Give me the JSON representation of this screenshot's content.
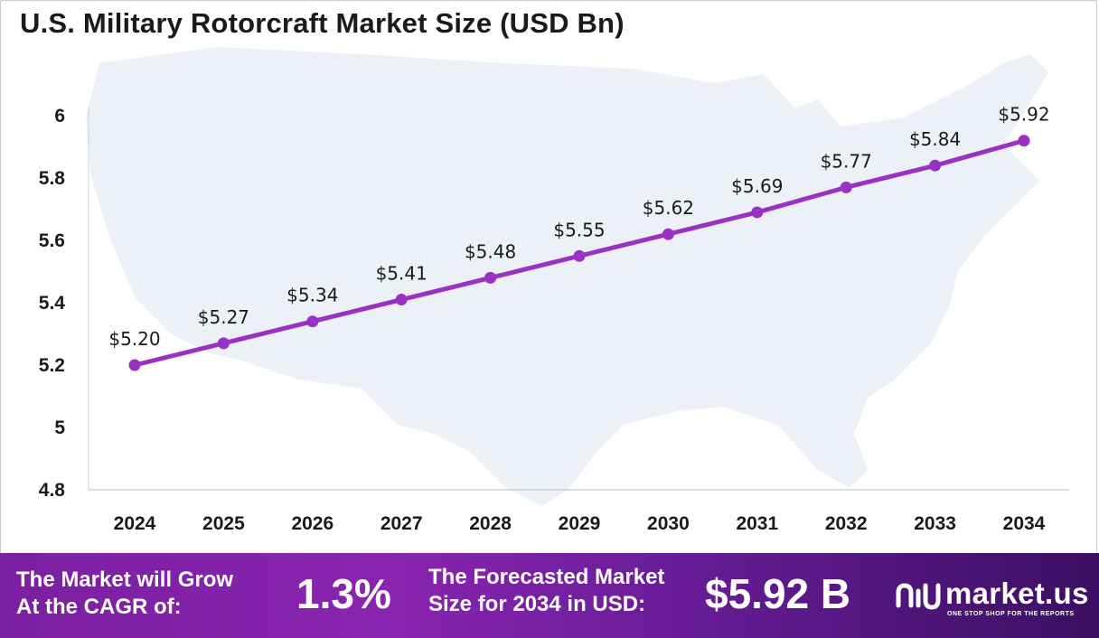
{
  "chart_data": {
    "type": "line",
    "title": "U.S. Military Rotorcraft Market Size (USD Bn)",
    "categories": [
      "2024",
      "2025",
      "2026",
      "2027",
      "2028",
      "2029",
      "2030",
      "2031",
      "2032",
      "2033",
      "2034"
    ],
    "values": [
      5.2,
      5.27,
      5.34,
      5.41,
      5.48,
      5.55,
      5.62,
      5.69,
      5.77,
      5.84,
      5.92
    ],
    "data_labels": [
      "$5.20",
      "$5.27",
      "$5.34",
      "$5.41",
      "$5.48",
      "$5.55",
      "$5.62",
      "$5.69",
      "$5.77",
      "$5.84",
      "$5.92"
    ],
    "y_ticks": [
      4.8,
      5,
      5.2,
      5.4,
      5.6,
      5.8,
      6
    ],
    "y_tick_labels": [
      "4.8",
      "5",
      "5.2",
      "5.4",
      "5.6",
      "5.8",
      "6"
    ],
    "ylim": [
      4.8,
      6.0
    ],
    "grid": false,
    "legend": "none",
    "series_color": "#9b30c4"
  },
  "banner": {
    "cagr_label_line1": "The Market will Grow",
    "cagr_label_line2": "At the CAGR of:",
    "cagr_value": "1.3%",
    "forecast_label_line1": "The Forecasted Market",
    "forecast_label_line2": "Size for 2034 in USD:",
    "forecast_value": "$5.92 B",
    "logo_name": "market.us",
    "logo_tagline": "ONE STOP SHOP FOR THE REPORTS"
  },
  "background_icon": "usa-map-silhouette",
  "logo_icon": "market-us-logo-icon"
}
